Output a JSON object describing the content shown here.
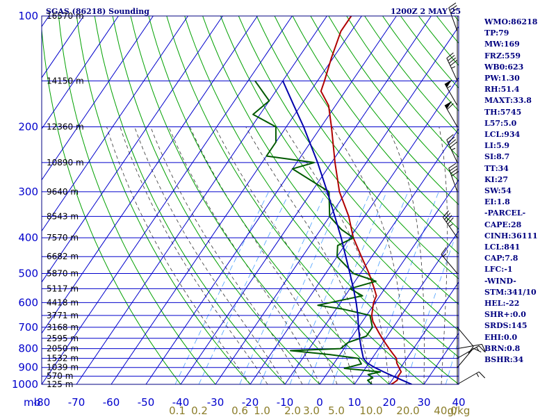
{
  "header": {
    "station_title": "SGAS (86218) Sounding",
    "time_label": "1200Z  2 MAY 25"
  },
  "colors": {
    "frame": "#000080",
    "isobar": "#0000cc",
    "isotherm": "#0000cc",
    "dry_adiabat": "#00a000",
    "moist_adiabat": "#333333",
    "mixing_ratio": "#4aa0ff",
    "temperature": "#b00000",
    "dewpoint": "#005a00",
    "parcel": "#0000aa",
    "wind": "#000000",
    "mixing_label": "#8b7d2a"
  },
  "indices": [
    "WMO:86218",
    "TP:79",
    "MW:169",
    "FRZ:559",
    "WB0:623",
    "PW:1.30",
    "RH:51.4",
    "MAXT:33.8",
    "TH:5745",
    "L57:5.0",
    "LCL:934",
    "LI:5.9",
    "SI:8.7",
    "TT:34",
    "KI:27",
    "SW:54",
    "EI:1.8",
    "-PARCEL-",
    "CAPE:28",
    "CINH:36111",
    "LCL:841",
    "CAP:7.8",
    "LFC:-1",
    "-WIND-",
    "STM:341/10",
    "HEL:-22",
    "SHR+:0.0",
    "SRDS:145",
    "EHI:0.0",
    "BRN:0.8",
    "BSHR:34"
  ],
  "chart_data": {
    "type": "line",
    "title": "SGAS (86218) Sounding",
    "subtitle": "1200Z  2 MAY 25",
    "y_scale": "log",
    "ylabel": "mb",
    "xlim": [
      -80,
      40
    ],
    "ylim": [
      1000,
      100
    ],
    "isotherm_ticks": [
      -80,
      -70,
      -60,
      -50,
      -40,
      -30,
      -20,
      -10,
      0,
      10,
      20,
      30,
      40
    ],
    "isotherm_labels": [
      "-80",
      "-70",
      "-60",
      "-50",
      "-40",
      "-30",
      "-20",
      "-10",
      "0",
      "10",
      "20",
      "30",
      "40"
    ],
    "pressure_ticks": [
      100,
      200,
      300,
      400,
      500,
      600,
      700,
      800,
      900,
      1000
    ],
    "pressure_labels": [
      "100",
      "200",
      "300",
      "400",
      "500",
      "600",
      "700",
      "800",
      "900",
      "1000"
    ],
    "height_labels": [
      {
        "p": 100,
        "text": "16570 m"
      },
      {
        "p": 150,
        "text": "14150 m"
      },
      {
        "p": 200,
        "text": "12360 m"
      },
      {
        "p": 250,
        "text": "10890 m"
      },
      {
        "p": 300,
        "text": "9640 m"
      },
      {
        "p": 350,
        "text": "8543 m"
      },
      {
        "p": 400,
        "text": "7570 m"
      },
      {
        "p": 450,
        "text": "6682 m"
      },
      {
        "p": 500,
        "text": "5870 m"
      },
      {
        "p": 550,
        "text": "5117 m"
      },
      {
        "p": 600,
        "text": "4418 m"
      },
      {
        "p": 650,
        "text": "3771 m"
      },
      {
        "p": 700,
        "text": "3168 m"
      },
      {
        "p": 750,
        "text": "2595 m"
      },
      {
        "p": 800,
        "text": "2050 m"
      },
      {
        "p": 850,
        "text": "1532 m"
      },
      {
        "p": 900,
        "text": "1039 m"
      },
      {
        "p": 950,
        "text": "570 m"
      },
      {
        "p": 1000,
        "text": "125 m"
      }
    ],
    "mixing_ratio_labels": [
      {
        "w": 0.1,
        "text": "0.1"
      },
      {
        "w": 0.2,
        "text": "0.2"
      },
      {
        "w": 0.6,
        "text": "0.6"
      },
      {
        "w": 1.0,
        "text": "1.0"
      },
      {
        "w": 2.0,
        "text": "2.0"
      },
      {
        "w": 3.0,
        "text": "3.0"
      },
      {
        "w": 5.0,
        "text": "5.0"
      },
      {
        "w": 10.0,
        "text": "10.0"
      },
      {
        "w": 20.0,
        "text": "20.0"
      },
      {
        "w": 40.0,
        "text": "40.0"
      }
    ],
    "mixing_unit": "g/kg",
    "series": [
      {
        "name": "Temperature",
        "points": [
          [
            1000,
            20.5
          ],
          [
            990,
            21.0
          ],
          [
            975,
            21.5
          ],
          [
            950,
            21.0
          ],
          [
            925,
            21.0
          ],
          [
            900,
            19.5
          ],
          [
            875,
            18.0
          ],
          [
            850,
            17.0
          ],
          [
            825,
            15.0
          ],
          [
            800,
            13.0
          ],
          [
            775,
            11.0
          ],
          [
            750,
            9.0
          ],
          [
            725,
            7.0
          ],
          [
            700,
            5.0
          ],
          [
            675,
            3.0
          ],
          [
            650,
            1.5
          ],
          [
            625,
            0.5
          ],
          [
            600,
            -0.5
          ],
          [
            575,
            -1.0
          ],
          [
            550,
            -3.0
          ],
          [
            500,
            -7.5
          ],
          [
            450,
            -13.0
          ],
          [
            400,
            -19.0
          ],
          [
            350,
            -24.5
          ],
          [
            300,
            -32.0
          ],
          [
            250,
            -39.0
          ],
          [
            200,
            -47.0
          ],
          [
            175,
            -52.0
          ],
          [
            160,
            -57.0
          ],
          [
            150,
            -58.0
          ],
          [
            130,
            -60.5
          ],
          [
            110,
            -63.0
          ],
          [
            100,
            -63.0
          ]
        ]
      },
      {
        "name": "Dewpoint",
        "points": [
          [
            1000,
            15.0
          ],
          [
            975,
            13.0
          ],
          [
            960,
            14.0
          ],
          [
            940,
            12.0
          ],
          [
            925,
            15.0
          ],
          [
            905,
            4.0
          ],
          [
            880,
            8.0
          ],
          [
            850,
            6.0
          ],
          [
            830,
            -3.0
          ],
          [
            810,
            -15.0
          ],
          [
            800,
            -1.0
          ],
          [
            770,
            0.0
          ],
          [
            740,
            4.0
          ],
          [
            700,
            4.0
          ],
          [
            650,
            1.0
          ],
          [
            625,
            -8.0
          ],
          [
            610,
            -16.0
          ],
          [
            575,
            -5.0
          ],
          [
            550,
            -10.0
          ],
          [
            525,
            -4.0
          ],
          [
            500,
            -12.0
          ],
          [
            450,
            -20.0
          ],
          [
            420,
            -22.0
          ],
          [
            400,
            -19.0
          ],
          [
            380,
            -24.0
          ],
          [
            350,
            -30.0
          ],
          [
            300,
            -35.0
          ],
          [
            260,
            -50.0
          ],
          [
            250,
            -45.0
          ],
          [
            240,
            -60.0
          ],
          [
            220,
            -60.0
          ],
          [
            200,
            -63.0
          ],
          [
            185,
            -72.0
          ],
          [
            170,
            -70.0
          ],
          [
            150,
            -78.0
          ]
        ]
      },
      {
        "name": "Parcel",
        "points": [
          [
            1000,
            26.5
          ],
          [
            975,
            23.0
          ],
          [
            950,
            19.5
          ],
          [
            925,
            16.0
          ],
          [
            900,
            12.5
          ],
          [
            875,
            9.5
          ],
          [
            850,
            7.5
          ],
          [
            800,
            5.0
          ],
          [
            750,
            2.5
          ],
          [
            700,
            0.0
          ],
          [
            650,
            -2.5
          ],
          [
            600,
            -5.5
          ],
          [
            550,
            -9.0
          ],
          [
            500,
            -13.0
          ],
          [
            450,
            -17.5
          ],
          [
            400,
            -22.5
          ],
          [
            350,
            -28.5
          ],
          [
            300,
            -35.5
          ],
          [
            250,
            -44.0
          ],
          [
            200,
            -55.0
          ],
          [
            175,
            -62.0
          ],
          [
            150,
            -70.0
          ]
        ]
      }
    ],
    "wind_barbs": [
      {
        "p": 110,
        "dir": 340,
        "spd": 30
      },
      {
        "p": 150,
        "dir": 335,
        "spd": 45
      },
      {
        "p": 175,
        "dir": 330,
        "spd": 55
      },
      {
        "p": 200,
        "dir": 330,
        "spd": 60
      },
      {
        "p": 250,
        "dir": 335,
        "spd": 45
      },
      {
        "p": 300,
        "dir": 340,
        "spd": 40
      },
      {
        "p": 400,
        "dir": 325,
        "spd": 45
      },
      {
        "p": 500,
        "dir": 320,
        "spd": 15
      },
      {
        "p": 700,
        "dir": 140,
        "spd": 10
      },
      {
        "p": 800,
        "dir": 80,
        "spd": 10
      },
      {
        "p": 850,
        "dir": 60,
        "spd": 15
      },
      {
        "p": 900,
        "dir": 40,
        "spd": 10
      },
      {
        "p": 1000,
        "dir": 60,
        "spd": 15
      }
    ]
  }
}
